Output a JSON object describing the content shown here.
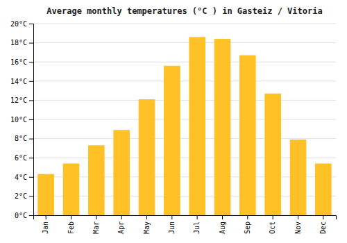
{
  "chart_data": {
    "type": "bar",
    "title": "Average monthly temperatures (°C ) in Gasteiz / Vitoria",
    "categories": [
      "Jan",
      "Feb",
      "Mar",
      "Apr",
      "May",
      "Jun",
      "Jul",
      "Aug",
      "Sep",
      "Oct",
      "Nov",
      "Dec"
    ],
    "values": [
      4.3,
      5.4,
      7.3,
      8.9,
      12.1,
      15.6,
      18.6,
      18.4,
      16.7,
      12.7,
      7.9,
      5.4
    ],
    "color": "#FFC125",
    "ylim": [
      0,
      20
    ],
    "yticks": [
      {
        "value": 0,
        "label": "0°C"
      },
      {
        "value": 2,
        "label": "2°C"
      },
      {
        "value": 4,
        "label": "4°C"
      },
      {
        "value": 6,
        "label": "6°C"
      },
      {
        "value": 8,
        "label": "8°C"
      },
      {
        "value": 10,
        "label": "10°C"
      },
      {
        "value": 12,
        "label": "12°C"
      },
      {
        "value": 14,
        "label": "14°C"
      },
      {
        "value": 16,
        "label": "16°C"
      },
      {
        "value": 18,
        "label": "18°C"
      },
      {
        "value": 20,
        "label": "20°C"
      }
    ],
    "grid": true
  }
}
